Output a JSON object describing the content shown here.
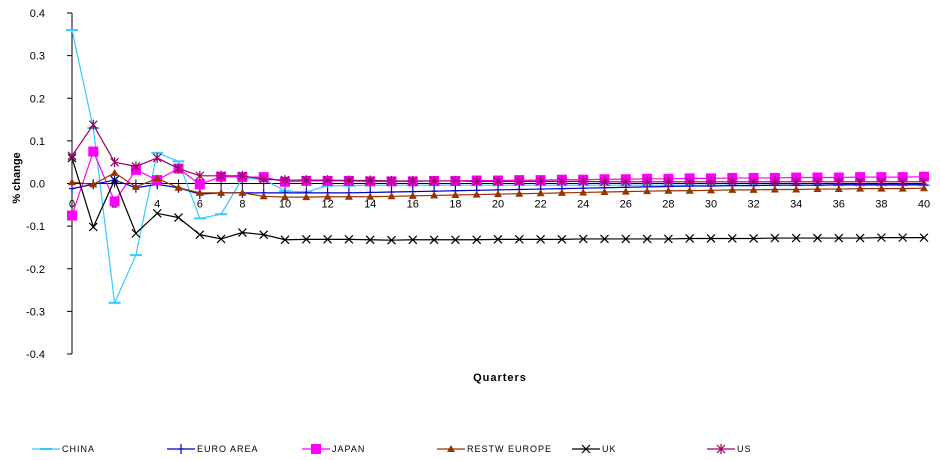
{
  "chart_data": {
    "type": "line",
    "xlabel": "Quarters",
    "ylabel": "% change",
    "xlim": [
      0,
      40
    ],
    "ylim": [
      -0.4,
      0.4
    ],
    "x_ticks": [
      "0",
      "2",
      "4",
      "6",
      "8",
      "10",
      "12",
      "14",
      "16",
      "18",
      "20",
      "22",
      "24",
      "26",
      "28",
      "30",
      "32",
      "34",
      "36",
      "38",
      "40"
    ],
    "y_ticks": [
      "0.4",
      "0.3",
      "0.2",
      "0.1",
      "0.0",
      "-0.1",
      "-0.2",
      "-0.3",
      "-0.4"
    ],
    "x": [
      0,
      1,
      2,
      3,
      4,
      5,
      6,
      7,
      8,
      9,
      10,
      11,
      12,
      13,
      14,
      15,
      16,
      17,
      18,
      19,
      20,
      21,
      22,
      23,
      24,
      25,
      26,
      27,
      28,
      29,
      30,
      31,
      32,
      33,
      34,
      35,
      36,
      37,
      38,
      39,
      40
    ],
    "series": [
      {
        "name": "CHINA",
        "color": "#33ccff",
        "marker": "bar",
        "values": [
          0.36,
          0.13,
          -0.28,
          -0.168,
          0.072,
          0.052,
          -0.082,
          -0.072,
          0.012,
          0.01,
          -0.018,
          -0.02,
          -0.005,
          -0.005,
          -0.004,
          -0.004,
          -0.004,
          -0.004,
          -0.004,
          -0.004,
          -0.004,
          -0.004,
          -0.004,
          -0.004,
          -0.004,
          -0.004,
          -0.004,
          -0.004,
          -0.004,
          -0.004,
          -0.004,
          -0.004,
          -0.004,
          -0.004,
          -0.004,
          -0.004,
          -0.004,
          -0.004,
          -0.004,
          -0.004,
          -0.004
        ]
      },
      {
        "name": "EURO AREA",
        "color": "#0000cc",
        "marker": "plus",
        "values": [
          -0.012,
          -0.002,
          0.008,
          -0.01,
          -0.002,
          -0.01,
          -0.025,
          -0.022,
          -0.022,
          -0.022,
          -0.022,
          -0.022,
          -0.022,
          -0.022,
          -0.021,
          -0.02,
          -0.019,
          -0.018,
          -0.017,
          -0.016,
          -0.015,
          -0.014,
          -0.013,
          -0.012,
          -0.011,
          -0.01,
          -0.009,
          -0.008,
          -0.007,
          -0.006,
          -0.006,
          -0.005,
          -0.005,
          -0.004,
          -0.004,
          -0.004,
          -0.003,
          -0.003,
          -0.003,
          -0.003,
          -0.003
        ]
      },
      {
        "name": "JAPAN",
        "color": "#ff00ff",
        "marker": "square",
        "values": [
          -0.075,
          0.075,
          -0.042,
          0.032,
          0.008,
          0.035,
          -0.002,
          0.016,
          0.015,
          0.015,
          0.004,
          0.006,
          0.006,
          0.006,
          0.005,
          0.005,
          0.005,
          0.006,
          0.006,
          0.007,
          0.007,
          0.008,
          0.008,
          0.009,
          0.009,
          0.01,
          0.01,
          0.011,
          0.011,
          0.012,
          0.012,
          0.013,
          0.013,
          0.013,
          0.014,
          0.014,
          0.014,
          0.015,
          0.015,
          0.015,
          0.016
        ]
      },
      {
        "name": "RESTW EUROPE",
        "color": "#993300",
        "marker": "triangle",
        "values": [
          0.003,
          -0.002,
          0.025,
          -0.008,
          0.012,
          -0.01,
          -0.022,
          -0.022,
          -0.022,
          -0.03,
          -0.032,
          -0.032,
          -0.031,
          -0.031,
          -0.031,
          -0.03,
          -0.029,
          -0.028,
          -0.027,
          -0.026,
          -0.025,
          -0.024,
          -0.023,
          -0.022,
          -0.021,
          -0.02,
          -0.019,
          -0.018,
          -0.017,
          -0.017,
          -0.016,
          -0.015,
          -0.015,
          -0.014,
          -0.014,
          -0.013,
          -0.013,
          -0.012,
          -0.012,
          -0.012,
          -0.011
        ]
      },
      {
        "name": "UK",
        "color": "#000000",
        "marker": "x",
        "values": [
          0.06,
          -0.102,
          0.008,
          -0.117,
          -0.07,
          -0.08,
          -0.12,
          -0.13,
          -0.115,
          -0.12,
          -0.132,
          -0.131,
          -0.131,
          -0.131,
          -0.132,
          -0.133,
          -0.132,
          -0.132,
          -0.132,
          -0.132,
          -0.131,
          -0.131,
          -0.131,
          -0.131,
          -0.13,
          -0.13,
          -0.13,
          -0.13,
          -0.13,
          -0.129,
          -0.129,
          -0.129,
          -0.129,
          -0.128,
          -0.128,
          -0.128,
          -0.128,
          -0.128,
          -0.127,
          -0.127,
          -0.127
        ]
      },
      {
        "name": "US",
        "color": "#990066",
        "marker": "star",
        "values": [
          0.065,
          0.138,
          0.05,
          0.04,
          0.06,
          0.035,
          0.018,
          0.018,
          0.018,
          0.01,
          0.008,
          0.008,
          0.008,
          0.007,
          0.007,
          0.006,
          0.006,
          0.006,
          0.006,
          0.005,
          0.005,
          0.005,
          0.005,
          0.005,
          0.005,
          0.004,
          0.004,
          0.004,
          0.004,
          0.004,
          0.004,
          0.004,
          0.004,
          0.004,
          0.004,
          0.004,
          0.004,
          0.004,
          0.004,
          0.004,
          0.004
        ]
      }
    ],
    "legend": "bottom",
    "grid": false
  }
}
